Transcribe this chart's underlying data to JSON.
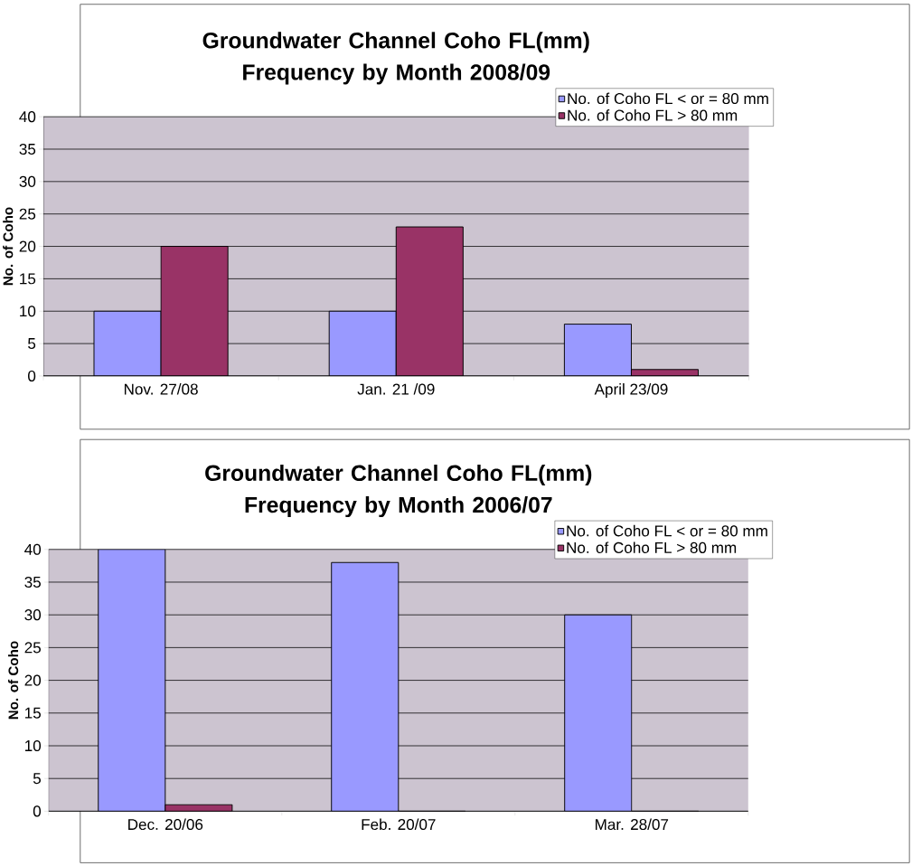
{
  "chart_data": [
    {
      "type": "bar",
      "title": "Groundwater Channel Coho FL(mm) Frequency by Month 2008/09",
      "ylabel": "No. of Coho",
      "categories": [
        "Nov. 27/08",
        "Jan. 21 /09",
        "April 23/09"
      ],
      "series": [
        {
          "name": "No. of Coho FL < or = 80 mm",
          "color": "#9999ff",
          "values": [
            10,
            10,
            8
          ]
        },
        {
          "name": "No. of Coho FL > 80 mm",
          "color": "#993366",
          "values": [
            20,
            23,
            1
          ]
        }
      ],
      "ylim": [
        0,
        40
      ],
      "yticks": [
        0,
        5,
        10,
        15,
        20,
        25,
        30,
        35,
        40
      ],
      "grid": "y",
      "legend": "top right"
    },
    {
      "type": "bar",
      "title": "Groundwater Channel Coho FL(mm) Frequency by Month 2006/07",
      "ylabel": "No. of Coho",
      "categories": [
        "Dec. 20/06",
        "Feb. 20/07",
        "Mar. 28/07"
      ],
      "series": [
        {
          "name": "No. of Coho FL < or = 80 mm",
          "color": "#9999ff",
          "values": [
            40,
            38,
            30
          ]
        },
        {
          "name": "No. of Coho FL > 80 mm",
          "color": "#993366",
          "values": [
            1,
            0,
            0
          ]
        }
      ],
      "ylim": [
        0,
        40
      ],
      "yticks": [
        0,
        5,
        10,
        15,
        20,
        25,
        30,
        35,
        40
      ],
      "grid": "y",
      "legend": "top right"
    }
  ]
}
